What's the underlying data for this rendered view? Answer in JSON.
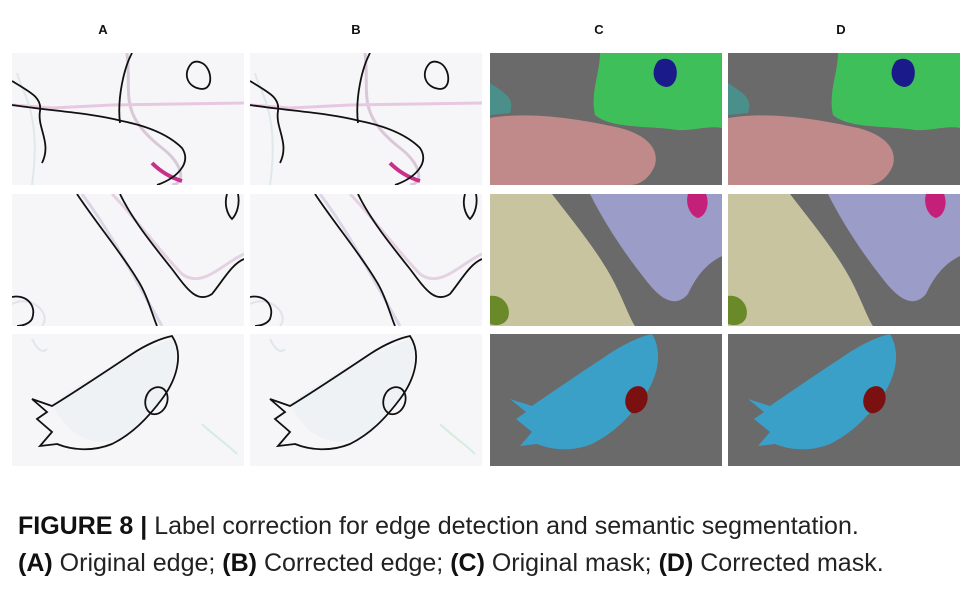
{
  "columns": [
    "A",
    "B",
    "C",
    "D"
  ],
  "caption": {
    "figure_label": "FIGURE 8 |",
    "title": "Label correction for edge detection and semantic segmentation.",
    "items": [
      {
        "tag": "(A)",
        "text": "Original edge;"
      },
      {
        "tag": "(B)",
        "text": "Corrected edge;"
      },
      {
        "tag": "(C)",
        "text": "Original mask;"
      },
      {
        "tag": "(D)",
        "text": "Corrected mask."
      }
    ]
  },
  "colors": {
    "mask_background": "#6a6a6a",
    "green_region": "#3fbf5a",
    "dark_blue_nucleus": "#1a1a8a",
    "pink_region": "#c08a8a",
    "teal_region": "#4a8f8a",
    "yellow_region": "#c8c4a0",
    "lavender_region": "#9c9cc8",
    "magenta_nucleus": "#c4207a",
    "olive_region": "#6a8a2a",
    "cyan_region": "#3aa0c8",
    "dark_red_nucleus": "#7a1010",
    "edge_line": "#111111",
    "edge_background": "#f6f6f8"
  }
}
